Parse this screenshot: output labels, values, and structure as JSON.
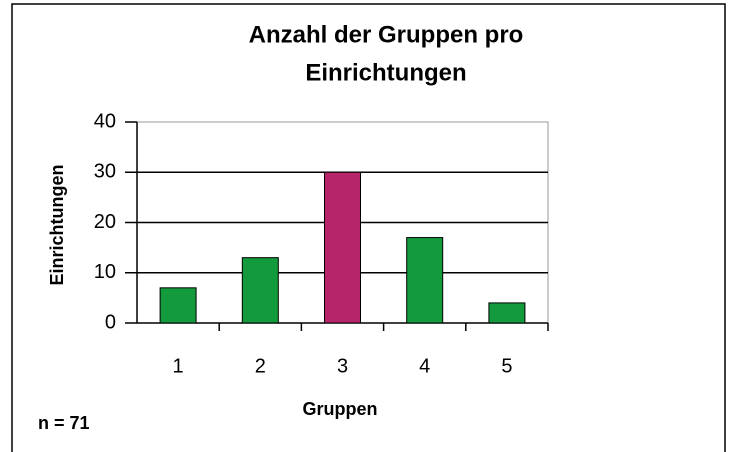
{
  "chart_data": {
    "type": "bar",
    "title": [
      "Anzahl der Gruppen pro",
      "Einrichtungen"
    ],
    "x_label": "Gruppen",
    "y_label": "Einrichtungen",
    "annotation": "n = 71",
    "categories": [
      "1",
      "2",
      "3",
      "4",
      "5"
    ],
    "values": [
      7,
      13,
      30,
      17,
      4
    ],
    "colors": [
      "#129a3c",
      "#129a3c",
      "#b8246a",
      "#129a3c",
      "#129a3c"
    ],
    "ylim": [
      0,
      40
    ],
    "yticks": [
      0,
      10,
      20,
      30,
      40
    ],
    "grid": true
  }
}
